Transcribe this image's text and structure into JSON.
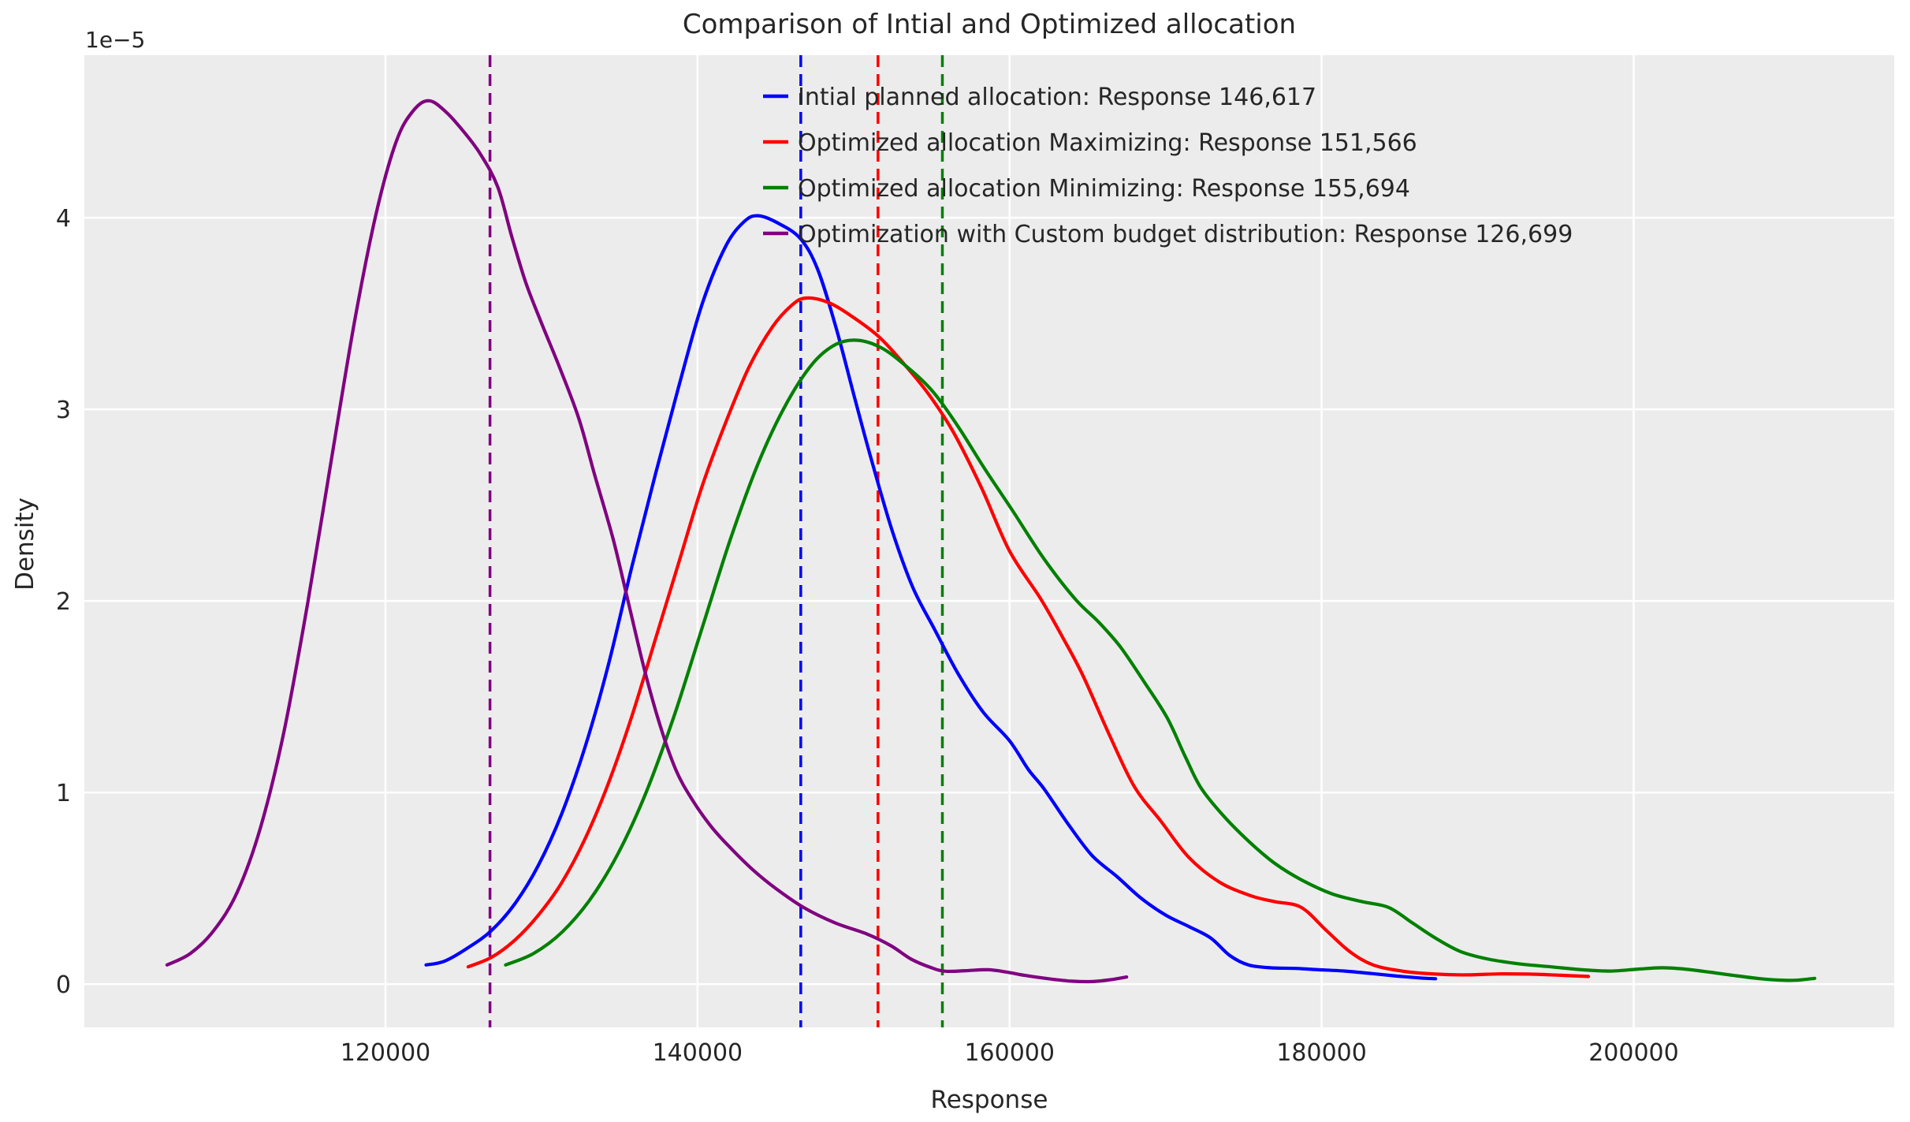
{
  "figure": {
    "title": "Comparison of Intial and Optimized allocation",
    "xlabel": "Response",
    "ylabel": "Density",
    "y_offset_label": "1e−5"
  },
  "colors": {
    "figure_bg": "#ffffff",
    "plot_bg": "#ececec",
    "grid": "#ffffff",
    "text": "#262626",
    "blue": "#0000ff",
    "red": "#ff0000",
    "green": "#008000",
    "purple": "#800080"
  },
  "chart_data": {
    "type": "line",
    "subtype": "kde-density",
    "title": "Comparison of Intial and Optimized allocation",
    "xlabel": "Response",
    "ylabel": "Density",
    "y_unit_multiplier": "1e-5",
    "grid": true,
    "legend_position": "upper center",
    "xlim": [
      100700,
      216700
    ],
    "ylim": [
      -0.226,
      4.848
    ],
    "x_ticks": [
      {
        "value": 120000,
        "label": "120000"
      },
      {
        "value": 140000,
        "label": "140000"
      },
      {
        "value": 160000,
        "label": "160000"
      },
      {
        "value": 180000,
        "label": "180000"
      },
      {
        "value": 200000,
        "label": "200000"
      }
    ],
    "y_ticks": [
      {
        "value": 0,
        "label": "0"
      },
      {
        "value": 1,
        "label": "1"
      },
      {
        "value": 2,
        "label": "2"
      },
      {
        "value": 3,
        "label": "3"
      },
      {
        "value": 4,
        "label": "4"
      }
    ],
    "series": [
      {
        "name": "Intial planned allocation: Response 146,617",
        "color": "#0000ff",
        "mean_line": 146617,
        "mean_response": "146,617",
        "points": [
          [
            122600,
            0.1
          ],
          [
            123800,
            0.12
          ],
          [
            125300,
            0.19
          ],
          [
            126800,
            0.28
          ],
          [
            128300,
            0.42
          ],
          [
            129800,
            0.62
          ],
          [
            131300,
            0.89
          ],
          [
            132800,
            1.24
          ],
          [
            134300,
            1.67
          ],
          [
            135800,
            2.18
          ],
          [
            137300,
            2.66
          ],
          [
            138800,
            3.12
          ],
          [
            140300,
            3.55
          ],
          [
            141800,
            3.85
          ],
          [
            143000,
            3.98
          ],
          [
            143900,
            4.01
          ],
          [
            145200,
            3.97
          ],
          [
            146600,
            3.89
          ],
          [
            147700,
            3.73
          ],
          [
            148900,
            3.42
          ],
          [
            150100,
            3.05
          ],
          [
            151200,
            2.72
          ],
          [
            152500,
            2.36
          ],
          [
            153800,
            2.07
          ],
          [
            155200,
            1.85
          ],
          [
            156700,
            1.62
          ],
          [
            158300,
            1.42
          ],
          [
            160000,
            1.27
          ],
          [
            161200,
            1.12
          ],
          [
            162200,
            1.02
          ],
          [
            163800,
            0.83
          ],
          [
            165300,
            0.67
          ],
          [
            166900,
            0.56
          ],
          [
            168400,
            0.45
          ],
          [
            170000,
            0.36
          ],
          [
            171500,
            0.3
          ],
          [
            172900,
            0.24
          ],
          [
            174100,
            0.15
          ],
          [
            175300,
            0.1
          ],
          [
            176700,
            0.085
          ],
          [
            178300,
            0.082
          ],
          [
            179800,
            0.075
          ],
          [
            181500,
            0.068
          ],
          [
            183200,
            0.055
          ],
          [
            184800,
            0.042
          ],
          [
            186300,
            0.032
          ],
          [
            187300,
            0.028
          ]
        ]
      },
      {
        "name": "Optimized allocation Maximizing: Response 151,566",
        "color": "#ff0000",
        "mean_line": 151566,
        "mean_response": "151,566",
        "points": [
          [
            125300,
            0.09
          ],
          [
            126800,
            0.14
          ],
          [
            128300,
            0.23
          ],
          [
            129800,
            0.36
          ],
          [
            131300,
            0.53
          ],
          [
            132800,
            0.76
          ],
          [
            134300,
            1.05
          ],
          [
            135800,
            1.4
          ],
          [
            137300,
            1.8
          ],
          [
            138800,
            2.2
          ],
          [
            140300,
            2.6
          ],
          [
            141800,
            2.93
          ],
          [
            143300,
            3.22
          ],
          [
            144800,
            3.43
          ],
          [
            146000,
            3.54
          ],
          [
            146900,
            3.58
          ],
          [
            148300,
            3.56
          ],
          [
            149800,
            3.49
          ],
          [
            151600,
            3.38
          ],
          [
            153200,
            3.24
          ],
          [
            154800,
            3.08
          ],
          [
            156400,
            2.88
          ],
          [
            158200,
            2.59
          ],
          [
            160000,
            2.26
          ],
          [
            162000,
            2.01
          ],
          [
            163400,
            1.81
          ],
          [
            164700,
            1.61
          ],
          [
            166400,
            1.3
          ],
          [
            168000,
            1.03
          ],
          [
            169700,
            0.85
          ],
          [
            171500,
            0.66
          ],
          [
            173500,
            0.53
          ],
          [
            175500,
            0.46
          ],
          [
            177000,
            0.43
          ],
          [
            178700,
            0.4
          ],
          [
            180300,
            0.28
          ],
          [
            181800,
            0.17
          ],
          [
            183300,
            0.1
          ],
          [
            185300,
            0.066
          ],
          [
            187300,
            0.052
          ],
          [
            189300,
            0.048
          ],
          [
            191300,
            0.053
          ],
          [
            193300,
            0.052
          ],
          [
            195300,
            0.046
          ],
          [
            197100,
            0.04
          ]
        ]
      },
      {
        "name": "Optimized allocation Minimizing: Response 155,694",
        "color": "#008000",
        "mean_line": 155694,
        "mean_response": "155,694",
        "points": [
          [
            127700,
            0.1
          ],
          [
            129500,
            0.16
          ],
          [
            131300,
            0.27
          ],
          [
            133100,
            0.44
          ],
          [
            134900,
            0.68
          ],
          [
            136700,
            1.0
          ],
          [
            138500,
            1.4
          ],
          [
            140300,
            1.86
          ],
          [
            142100,
            2.32
          ],
          [
            143900,
            2.72
          ],
          [
            145700,
            3.03
          ],
          [
            147400,
            3.24
          ],
          [
            148900,
            3.34
          ],
          [
            150300,
            3.36
          ],
          [
            151800,
            3.32
          ],
          [
            153300,
            3.23
          ],
          [
            155000,
            3.1
          ],
          [
            156700,
            2.91
          ],
          [
            158400,
            2.69
          ],
          [
            160200,
            2.47
          ],
          [
            162200,
            2.22
          ],
          [
            164200,
            2.01
          ],
          [
            165700,
            1.89
          ],
          [
            167100,
            1.76
          ],
          [
            168600,
            1.58
          ],
          [
            170100,
            1.39
          ],
          [
            171300,
            1.18
          ],
          [
            172300,
            1.02
          ],
          [
            173800,
            0.87
          ],
          [
            175400,
            0.74
          ],
          [
            177000,
            0.63
          ],
          [
            178800,
            0.54
          ],
          [
            180700,
            0.47
          ],
          [
            182600,
            0.43
          ],
          [
            184300,
            0.4
          ],
          [
            185800,
            0.32
          ],
          [
            187300,
            0.24
          ],
          [
            188900,
            0.17
          ],
          [
            190700,
            0.13
          ],
          [
            192700,
            0.105
          ],
          [
            194700,
            0.09
          ],
          [
            196700,
            0.075
          ],
          [
            198500,
            0.068
          ],
          [
            200300,
            0.078
          ],
          [
            201800,
            0.085
          ],
          [
            203300,
            0.078
          ],
          [
            204900,
            0.062
          ],
          [
            206400,
            0.045
          ],
          [
            207900,
            0.03
          ],
          [
            209300,
            0.021
          ],
          [
            210400,
            0.02
          ],
          [
            211600,
            0.03
          ]
        ]
      },
      {
        "name": "Optimization with Custom budget distribution: Response 126,699",
        "color": "#800080",
        "mean_line": 126699,
        "mean_response": "126,699",
        "points": [
          [
            106000,
            0.1
          ],
          [
            107500,
            0.16
          ],
          [
            109000,
            0.28
          ],
          [
            110500,
            0.48
          ],
          [
            112000,
            0.82
          ],
          [
            113500,
            1.32
          ],
          [
            115000,
            1.98
          ],
          [
            116500,
            2.72
          ],
          [
            118000,
            3.45
          ],
          [
            119400,
            4.02
          ],
          [
            120700,
            4.4
          ],
          [
            121800,
            4.56
          ],
          [
            122800,
            4.61
          ],
          [
            123900,
            4.55
          ],
          [
            125000,
            4.45
          ],
          [
            126100,
            4.33
          ],
          [
            127200,
            4.16
          ],
          [
            128100,
            3.9
          ],
          [
            129000,
            3.66
          ],
          [
            130000,
            3.45
          ],
          [
            131200,
            3.21
          ],
          [
            132400,
            2.95
          ],
          [
            133400,
            2.66
          ],
          [
            134600,
            2.32
          ],
          [
            135600,
            1.98
          ],
          [
            136600,
            1.64
          ],
          [
            137600,
            1.35
          ],
          [
            138600,
            1.12
          ],
          [
            139600,
            0.97
          ],
          [
            140800,
            0.83
          ],
          [
            142000,
            0.72
          ],
          [
            143500,
            0.6
          ],
          [
            145000,
            0.5
          ],
          [
            146800,
            0.4
          ],
          [
            148800,
            0.32
          ],
          [
            150900,
            0.26
          ],
          [
            152400,
            0.2
          ],
          [
            153700,
            0.13
          ],
          [
            155000,
            0.085
          ],
          [
            155900,
            0.067
          ],
          [
            157200,
            0.07
          ],
          [
            158600,
            0.075
          ],
          [
            159800,
            0.063
          ],
          [
            161000,
            0.045
          ],
          [
            162500,
            0.028
          ],
          [
            164000,
            0.015
          ],
          [
            165300,
            0.013
          ],
          [
            166400,
            0.022
          ],
          [
            167500,
            0.037
          ]
        ]
      }
    ]
  }
}
